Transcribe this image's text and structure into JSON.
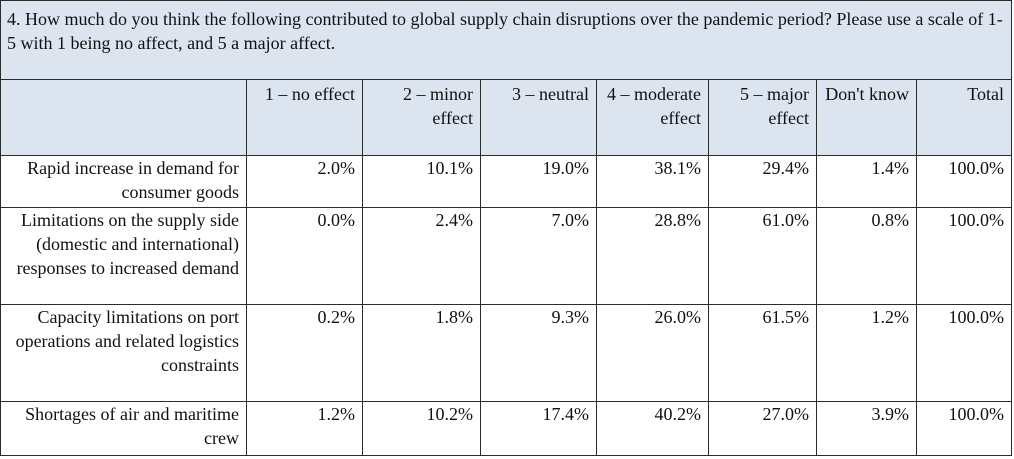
{
  "question": "4. How much do you think the following contributed to global supply chain disruptions over the pandemic period? Please use a scale of 1-5 with 1 being no affect, and 5 a major affect.",
  "columns": [
    "1 – no effect",
    "2 – minor effect",
    "3 – neutral",
    "4 – moderate effect",
    "5 – major effect",
    "Don't know",
    "Total"
  ],
  "rows": [
    {
      "label": "Rapid increase in demand for consumer goods",
      "values": [
        "2.0%",
        "10.1%",
        "19.0%",
        "38.1%",
        "29.4%",
        "1.4%",
        "100.0%"
      ]
    },
    {
      "label": "Limitations on the supply side (domestic and international) responses to increased demand",
      "values": [
        "0.0%",
        "2.4%",
        "7.0%",
        "28.8%",
        "61.0%",
        "0.8%",
        "100.0%"
      ]
    },
    {
      "label": "Capacity limitations on port operations and related logistics constraints",
      "values": [
        "0.2%",
        "1.8%",
        "9.3%",
        "26.0%",
        "61.5%",
        "1.2%",
        "100.0%"
      ]
    },
    {
      "label": "Shortages of air and maritime crew",
      "values": [
        "1.2%",
        "10.2%",
        "17.4%",
        "40.2%",
        "27.0%",
        "3.9%",
        "100.0%"
      ]
    }
  ],
  "colors": {
    "header_fill": "#dce4ef",
    "border": "#2b2b2b",
    "text": "#111111"
  }
}
